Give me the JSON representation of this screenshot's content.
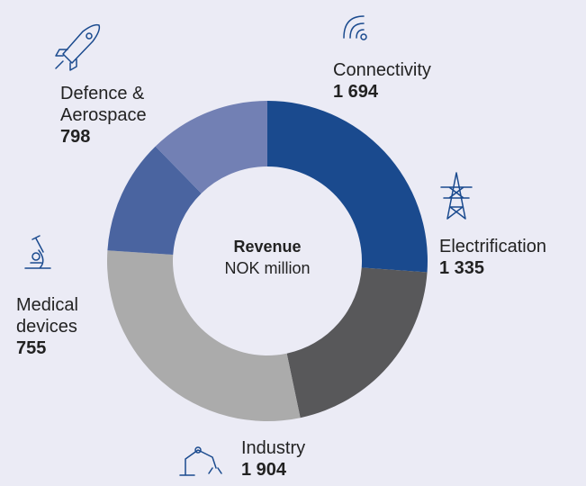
{
  "chart_data": {
    "type": "donut",
    "title": "Revenue",
    "subtitle": "NOK million",
    "categories": [
      "Connectivity",
      "Electrification",
      "Industry",
      "Medical devices",
      "Defence & Aerospace"
    ],
    "values": [
      1694,
      1335,
      1904,
      755,
      798
    ],
    "value_labels": [
      "1 694",
      "1 335",
      "1 904",
      "755",
      "798"
    ],
    "colors": [
      "#1a4a8e",
      "#58585a",
      "#ababab",
      "#4a64a0",
      "#7280b4"
    ]
  }
}
